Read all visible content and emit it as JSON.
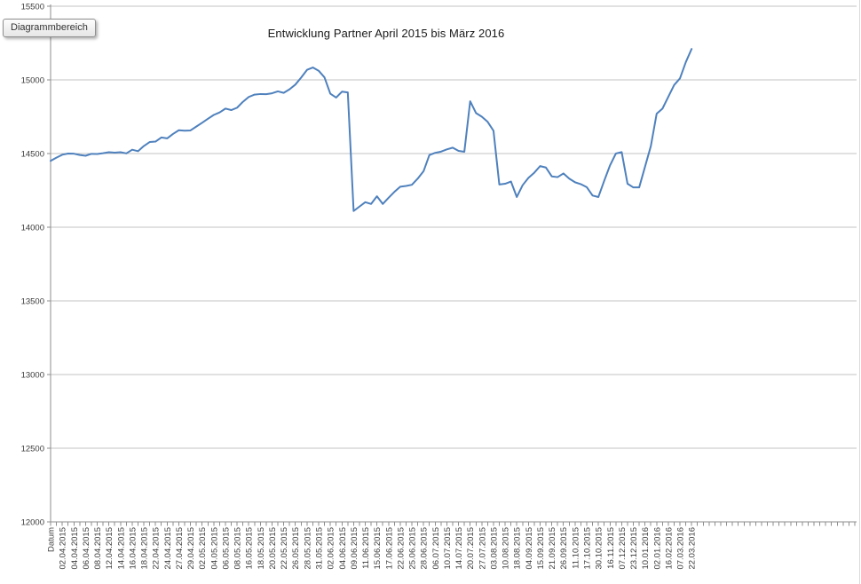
{
  "tooltip": {
    "label": "Diagrammbereich"
  },
  "chart_data": {
    "type": "line",
    "title": "Entwicklung Partner April 2015 bis März 2016",
    "legend": "none",
    "grid": true,
    "ylim": [
      12000,
      15500
    ],
    "y_tick_step": 500,
    "y_tick_labels": [
      "15500",
      "15000",
      "14500",
      "14000",
      "13500",
      "13000",
      "12500",
      "12000"
    ],
    "label_step_categories": 2,
    "ticks_total": 139,
    "axis_color": "#8e8e8e",
    "grid_color": "#c3c3c3",
    "label_color": "#3c3c3c",
    "categories": [
      "Datum",
      "02.04.2015",
      "04.04.2015",
      "06.04.2015",
      "08.04.2015",
      "12.04.2015",
      "14.04.2015",
      "16.04.2015",
      "18.04.2015",
      "22.04.2015",
      "24.04.2015",
      "27.04.2015",
      "29.04.2015",
      "02.05.2015",
      "04.05.2015",
      "06.05.2015",
      "08.05.2015",
      "16.05.2015",
      "18.05.2015",
      "20.05.2015",
      "22.05.2015",
      "26.05.2015",
      "28.05.2015",
      "31.05.2015",
      "02.06.2015",
      "04.06.2015",
      "09.06.2015",
      "11.06.2015",
      "15.06.2015",
      "17.06.2015",
      "22.06.2015",
      "25.06.2015",
      "28.06.2015",
      "06.07.2015",
      "10.07.2015",
      "14.07.2015",
      "20.07.2015",
      "27.07.2015",
      "03.08.2015",
      "10.08.2015",
      "18.08.2015",
      "04.09.2015",
      "15.09.2015",
      "21.09.2015",
      "26.09.2015",
      "11.10.2015",
      "17.10.2015",
      "30.10.2015",
      "16.11.2015",
      "07.12.2015",
      "23.12.2015",
      "10.01.2016",
      "02.01.2016",
      "16.02.2016",
      "07.03.2016",
      "22.03.2016"
    ],
    "series": [
      {
        "color": "#4f81bd",
        "values": [
          14450,
          14472,
          14492,
          14500,
          14499,
          14490,
          14485,
          14498,
          14497,
          14502,
          14509,
          14506,
          14509,
          14501,
          14526,
          14516,
          14551,
          14578,
          14581,
          14609,
          14603,
          14633,
          14658,
          14655,
          14657,
          14683,
          14709,
          14736,
          14762,
          14779,
          14805,
          14795,
          14811,
          14851,
          14884,
          14900,
          14904,
          14903,
          14909,
          14922,
          14912,
          14936,
          14968,
          15016,
          15068,
          15084,
          15062,
          15017,
          14906,
          14880,
          14920,
          14915,
          14110,
          14140,
          14170,
          14158,
          14210,
          14158,
          14200,
          14240,
          14275,
          14280,
          14288,
          14330,
          14380,
          14490,
          14505,
          14513,
          14528,
          14540,
          14518,
          14512,
          14855,
          14775,
          14750,
          14715,
          14655,
          14290,
          14295,
          14310,
          14205,
          14285,
          14335,
          14370,
          14415,
          14405,
          14345,
          14340,
          14365,
          14330,
          14305,
          14292,
          14272,
          14215,
          14205,
          14315,
          14420,
          14500,
          14510,
          14295,
          14270,
          14270,
          14410,
          14550,
          14770,
          14805,
          14885,
          14965,
          15010,
          15120,
          15210
        ]
      }
    ]
  }
}
